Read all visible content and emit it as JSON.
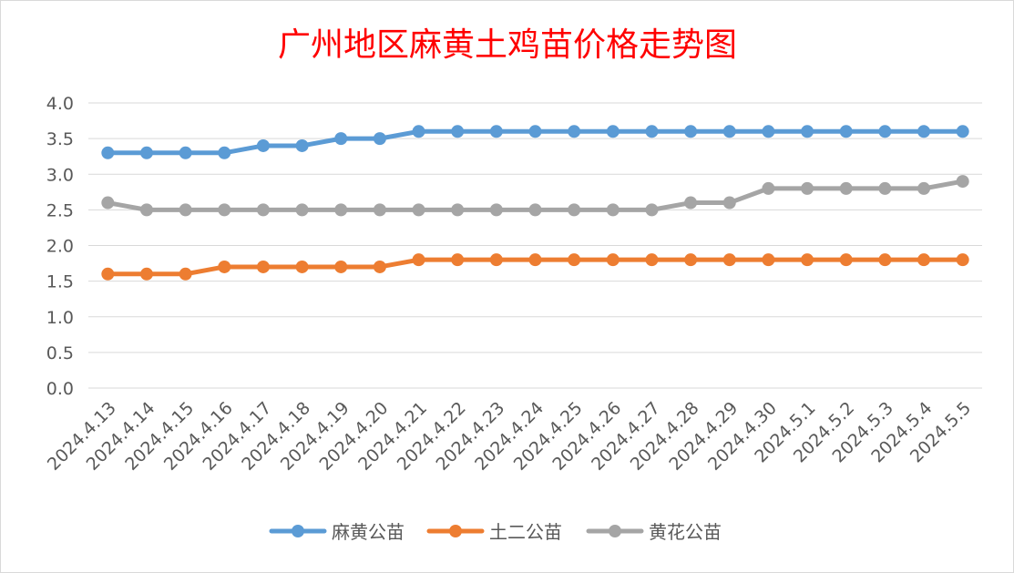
{
  "chart_data": {
    "type": "line",
    "title": "广州地区麻黄土鸡苗价格走势图",
    "xlabel": "",
    "ylabel": "",
    "ylim": [
      0,
      4.0
    ],
    "yticks": [
      "0.0",
      "0.5",
      "1.0",
      "1.5",
      "2.0",
      "2.5",
      "3.0",
      "3.5",
      "4.0"
    ],
    "grid": true,
    "legend_position": "bottom",
    "categories": [
      "2024.4.13",
      "2024.4.14",
      "2024.4.15",
      "2024.4.16",
      "2024.4.17",
      "2024.4.18",
      "2024.4.19",
      "2024.4.20",
      "2024.4.21",
      "2024.4.22",
      "2024.4.23",
      "2024.4.24",
      "2024.4.25",
      "2024.4.26",
      "2024.4.27",
      "2024.4.28",
      "2024.4.29",
      "2024.4.30",
      "2024.5.1",
      "2024.5.2",
      "2024.5.3",
      "2024.5.4",
      "2024.5.5"
    ],
    "series": [
      {
        "name": "麻黄公苗",
        "color": "#5b9bd5",
        "values": [
          3.3,
          3.3,
          3.3,
          3.3,
          3.4,
          3.4,
          3.5,
          3.5,
          3.6,
          3.6,
          3.6,
          3.6,
          3.6,
          3.6,
          3.6,
          3.6,
          3.6,
          3.6,
          3.6,
          3.6,
          3.6,
          3.6,
          3.6
        ]
      },
      {
        "name": "土二公苗",
        "color": "#ed7d31",
        "values": [
          1.6,
          1.6,
          1.6,
          1.7,
          1.7,
          1.7,
          1.7,
          1.7,
          1.8,
          1.8,
          1.8,
          1.8,
          1.8,
          1.8,
          1.8,
          1.8,
          1.8,
          1.8,
          1.8,
          1.8,
          1.8,
          1.8,
          1.8
        ]
      },
      {
        "name": "黄花公苗",
        "color": "#a5a5a5",
        "values": [
          2.6,
          2.5,
          2.5,
          2.5,
          2.5,
          2.5,
          2.5,
          2.5,
          2.5,
          2.5,
          2.5,
          2.5,
          2.5,
          2.5,
          2.5,
          2.6,
          2.6,
          2.8,
          2.8,
          2.8,
          2.8,
          2.8,
          2.9
        ]
      }
    ]
  }
}
